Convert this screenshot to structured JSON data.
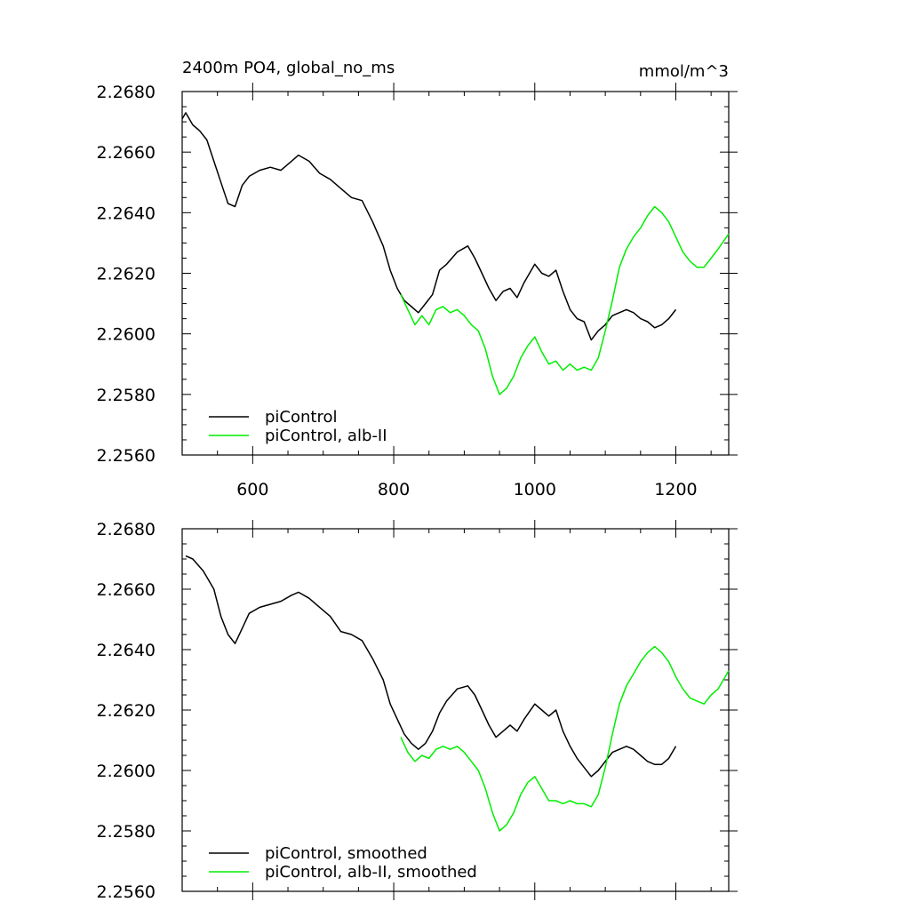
{
  "title": "2400m PO4, global_no_ms",
  "units": "mmol/m^3",
  "colors": {
    "piControl": "#000000",
    "alb_II": "#00ee00"
  },
  "chart_data": [
    {
      "type": "line",
      "xlim": [
        500,
        1275
      ],
      "ylim": [
        2.256,
        2.268
      ],
      "xticks": [
        600,
        800,
        1000,
        1200
      ],
      "xtick_labels": [
        "600",
        "800",
        "1000",
        "1200"
      ],
      "yticks": [
        2.256,
        2.258,
        2.26,
        2.262,
        2.264,
        2.266,
        2.268
      ],
      "ytick_labels": [
        "2.2560",
        "2.2580",
        "2.2600",
        "2.2620",
        "2.2640",
        "2.2660",
        "2.2680"
      ],
      "legend_position": "bottom-left",
      "series": [
        {
          "name": "piControl",
          "color": "#000000",
          "points": [
            [
              500,
              2.2671
            ],
            [
              505,
              2.2673
            ],
            [
              515,
              2.2669
            ],
            [
              525,
              2.2667
            ],
            [
              535,
              2.2664
            ],
            [
              545,
              2.2657
            ],
            [
              555,
              2.265
            ],
            [
              565,
              2.2643
            ],
            [
              575,
              2.2642
            ],
            [
              585,
              2.2649
            ],
            [
              595,
              2.2652
            ],
            [
              610,
              2.2654
            ],
            [
              625,
              2.2655
            ],
            [
              640,
              2.2654
            ],
            [
              655,
              2.2657
            ],
            [
              665,
              2.2659
            ],
            [
              680,
              2.2657
            ],
            [
              695,
              2.2653
            ],
            [
              710,
              2.2651
            ],
            [
              725,
              2.2648
            ],
            [
              740,
              2.2645
            ],
            [
              755,
              2.2644
            ],
            [
              770,
              2.2637
            ],
            [
              785,
              2.2629
            ],
            [
              795,
              2.2621
            ],
            [
              805,
              2.2615
            ],
            [
              815,
              2.2611
            ],
            [
              825,
              2.2609
            ],
            [
              835,
              2.2607
            ],
            [
              845,
              2.261
            ],
            [
              855,
              2.2613
            ],
            [
              865,
              2.2621
            ],
            [
              875,
              2.2623
            ],
            [
              890,
              2.2627
            ],
            [
              905,
              2.2629
            ],
            [
              915,
              2.2625
            ],
            [
              925,
              2.262
            ],
            [
              935,
              2.2615
            ],
            [
              945,
              2.2611
            ],
            [
              955,
              2.2614
            ],
            [
              965,
              2.2615
            ],
            [
              975,
              2.2612
            ],
            [
              985,
              2.2617
            ],
            [
              1000,
              2.2623
            ],
            [
              1010,
              2.262
            ],
            [
              1020,
              2.2619
            ],
            [
              1030,
              2.2621
            ],
            [
              1040,
              2.2614
            ],
            [
              1050,
              2.2608
            ],
            [
              1060,
              2.2605
            ],
            [
              1070,
              2.2604
            ],
            [
              1080,
              2.2598
            ],
            [
              1090,
              2.2601
            ],
            [
              1100,
              2.2603
            ],
            [
              1110,
              2.2606
            ],
            [
              1120,
              2.2607
            ],
            [
              1130,
              2.2608
            ],
            [
              1140,
              2.2607
            ],
            [
              1150,
              2.2605
            ],
            [
              1160,
              2.2604
            ],
            [
              1170,
              2.2602
            ],
            [
              1180,
              2.2603
            ],
            [
              1190,
              2.2605
            ],
            [
              1200,
              2.2608
            ]
          ]
        },
        {
          "name": "piControl, alb-II",
          "color": "#00ee00",
          "points": [
            [
              810,
              2.2613
            ],
            [
              820,
              2.2608
            ],
            [
              830,
              2.2603
            ],
            [
              840,
              2.2606
            ],
            [
              850,
              2.2603
            ],
            [
              860,
              2.2608
            ],
            [
              870,
              2.2609
            ],
            [
              880,
              2.2607
            ],
            [
              890,
              2.2608
            ],
            [
              900,
              2.2606
            ],
            [
              910,
              2.2603
            ],
            [
              920,
              2.2601
            ],
            [
              930,
              2.2595
            ],
            [
              940,
              2.2586
            ],
            [
              950,
              2.258
            ],
            [
              960,
              2.2582
            ],
            [
              970,
              2.2586
            ],
            [
              980,
              2.2592
            ],
            [
              990,
              2.2596
            ],
            [
              1000,
              2.2599
            ],
            [
              1010,
              2.2594
            ],
            [
              1020,
              2.259
            ],
            [
              1030,
              2.2591
            ],
            [
              1040,
              2.2588
            ],
            [
              1050,
              2.259
            ],
            [
              1060,
              2.2588
            ],
            [
              1070,
              2.2589
            ],
            [
              1080,
              2.2588
            ],
            [
              1090,
              2.2592
            ],
            [
              1100,
              2.2601
            ],
            [
              1110,
              2.2611
            ],
            [
              1120,
              2.2622
            ],
            [
              1130,
              2.2628
            ],
            [
              1140,
              2.2632
            ],
            [
              1150,
              2.2635
            ],
            [
              1160,
              2.2639
            ],
            [
              1170,
              2.2642
            ],
            [
              1180,
              2.264
            ],
            [
              1190,
              2.2637
            ],
            [
              1200,
              2.2632
            ],
            [
              1210,
              2.2627
            ],
            [
              1220,
              2.2624
            ],
            [
              1230,
              2.2622
            ],
            [
              1240,
              2.2622
            ],
            [
              1250,
              2.2625
            ],
            [
              1260,
              2.2628
            ],
            [
              1275,
              2.2633
            ]
          ]
        }
      ]
    },
    {
      "type": "line",
      "xlim": [
        500,
        1275
      ],
      "ylim": [
        2.256,
        2.268
      ],
      "xticks": [
        600,
        800,
        1000,
        1200
      ],
      "xtick_labels": [],
      "yticks": [
        2.256,
        2.258,
        2.26,
        2.262,
        2.264,
        2.266,
        2.268
      ],
      "ytick_labels": [
        "2.2560",
        "2.2580",
        "2.2600",
        "2.2620",
        "2.2640",
        "2.2660",
        "2.2680"
      ],
      "legend_position": "bottom-left",
      "series": [
        {
          "name": "piControl, smoothed",
          "color": "#000000",
          "points": [
            [
              505,
              2.2671
            ],
            [
              515,
              2.267
            ],
            [
              530,
              2.2666
            ],
            [
              545,
              2.266
            ],
            [
              555,
              2.2651
            ],
            [
              565,
              2.2645
            ],
            [
              575,
              2.2642
            ],
            [
              585,
              2.2647
            ],
            [
              595,
              2.2652
            ],
            [
              610,
              2.2654
            ],
            [
              625,
              2.2655
            ],
            [
              640,
              2.2656
            ],
            [
              655,
              2.2658
            ],
            [
              665,
              2.2659
            ],
            [
              680,
              2.2657
            ],
            [
              695,
              2.2654
            ],
            [
              710,
              2.2651
            ],
            [
              725,
              2.2646
            ],
            [
              740,
              2.2645
            ],
            [
              755,
              2.2643
            ],
            [
              770,
              2.2637
            ],
            [
              785,
              2.263
            ],
            [
              795,
              2.2622
            ],
            [
              805,
              2.2617
            ],
            [
              815,
              2.2612
            ],
            [
              825,
              2.2609
            ],
            [
              835,
              2.2607
            ],
            [
              845,
              2.2609
            ],
            [
              855,
              2.2613
            ],
            [
              865,
              2.2619
            ],
            [
              875,
              2.2623
            ],
            [
              890,
              2.2627
            ],
            [
              905,
              2.2628
            ],
            [
              915,
              2.2625
            ],
            [
              925,
              2.262
            ],
            [
              935,
              2.2615
            ],
            [
              945,
              2.2611
            ],
            [
              955,
              2.2613
            ],
            [
              965,
              2.2615
            ],
            [
              975,
              2.2613
            ],
            [
              985,
              2.2617
            ],
            [
              1000,
              2.2622
            ],
            [
              1010,
              2.262
            ],
            [
              1020,
              2.2618
            ],
            [
              1030,
              2.262
            ],
            [
              1040,
              2.2613
            ],
            [
              1050,
              2.2608
            ],
            [
              1060,
              2.2604
            ],
            [
              1070,
              2.2601
            ],
            [
              1080,
              2.2598
            ],
            [
              1090,
              2.26
            ],
            [
              1100,
              2.2603
            ],
            [
              1110,
              2.2606
            ],
            [
              1120,
              2.2607
            ],
            [
              1130,
              2.2608
            ],
            [
              1140,
              2.2607
            ],
            [
              1150,
              2.2605
            ],
            [
              1160,
              2.2603
            ],
            [
              1170,
              2.2602
            ],
            [
              1180,
              2.2602
            ],
            [
              1190,
              2.2604
            ],
            [
              1200,
              2.2608
            ]
          ]
        },
        {
          "name": "piControl, alb-II, smoothed",
          "color": "#00ee00",
          "points": [
            [
              810,
              2.2611
            ],
            [
              820,
              2.2606
            ],
            [
              830,
              2.2603
            ],
            [
              840,
              2.2605
            ],
            [
              850,
              2.2604
            ],
            [
              860,
              2.2607
            ],
            [
              870,
              2.2608
            ],
            [
              880,
              2.2607
            ],
            [
              890,
              2.2608
            ],
            [
              900,
              2.2606
            ],
            [
              910,
              2.2603
            ],
            [
              920,
              2.26
            ],
            [
              930,
              2.2594
            ],
            [
              940,
              2.2586
            ],
            [
              950,
              2.258
            ],
            [
              960,
              2.2582
            ],
            [
              970,
              2.2586
            ],
            [
              980,
              2.2592
            ],
            [
              990,
              2.2596
            ],
            [
              1000,
              2.2598
            ],
            [
              1010,
              2.2594
            ],
            [
              1020,
              2.259
            ],
            [
              1030,
              2.259
            ],
            [
              1040,
              2.2589
            ],
            [
              1050,
              2.259
            ],
            [
              1060,
              2.2589
            ],
            [
              1070,
              2.2589
            ],
            [
              1080,
              2.2588
            ],
            [
              1090,
              2.2592
            ],
            [
              1100,
              2.2601
            ],
            [
              1110,
              2.2612
            ],
            [
              1120,
              2.2622
            ],
            [
              1130,
              2.2628
            ],
            [
              1140,
              2.2632
            ],
            [
              1150,
              2.2636
            ],
            [
              1160,
              2.2639
            ],
            [
              1170,
              2.2641
            ],
            [
              1180,
              2.2639
            ],
            [
              1190,
              2.2636
            ],
            [
              1200,
              2.2631
            ],
            [
              1210,
              2.2627
            ],
            [
              1220,
              2.2624
            ],
            [
              1230,
              2.2623
            ],
            [
              1240,
              2.2622
            ],
            [
              1250,
              2.2625
            ],
            [
              1260,
              2.2627
            ],
            [
              1275,
              2.2633
            ]
          ]
        }
      ]
    }
  ]
}
